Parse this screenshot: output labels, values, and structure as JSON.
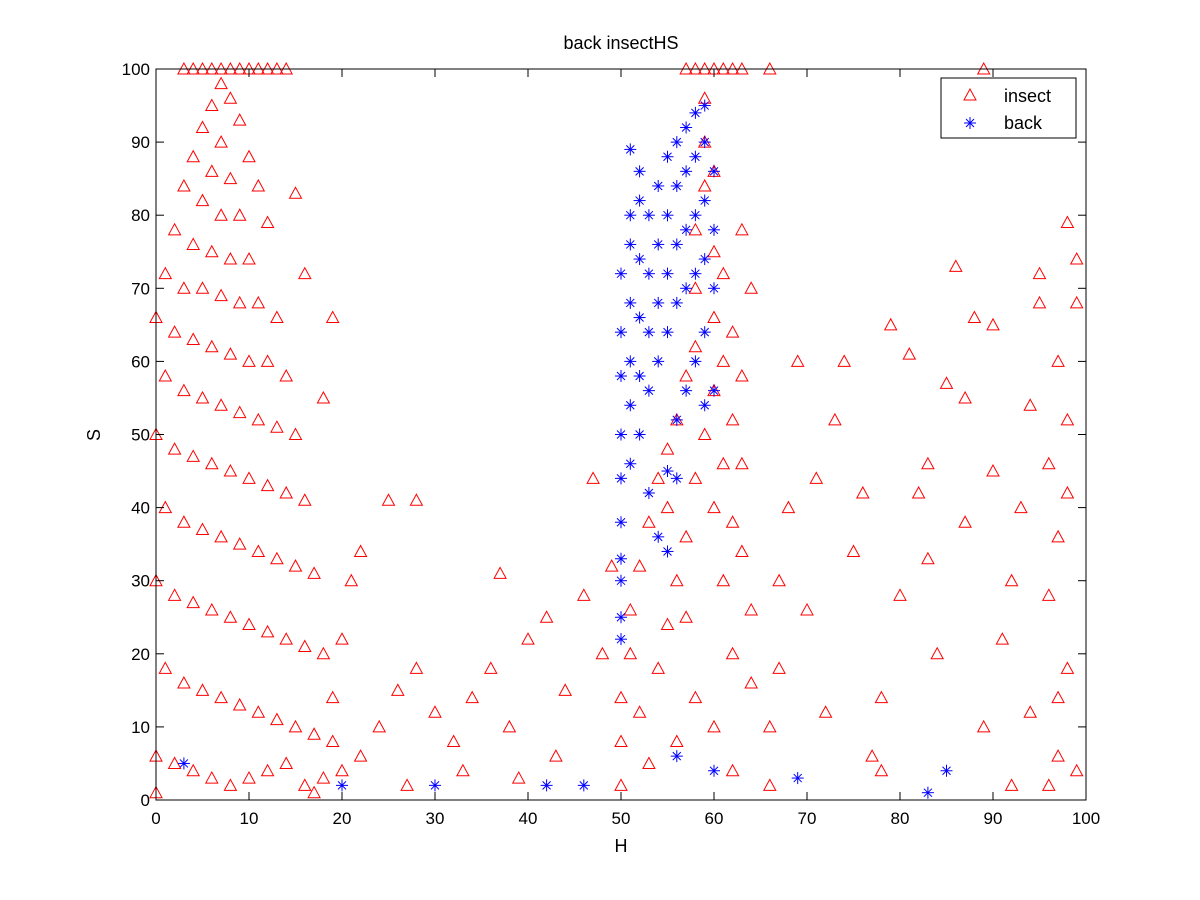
{
  "chart_data": {
    "type": "scatter",
    "title": "back insectHS",
    "xlabel": "H",
    "ylabel": "S",
    "xlim": [
      0,
      100
    ],
    "ylim": [
      0,
      100
    ],
    "xticks": [
      0,
      10,
      20,
      30,
      40,
      50,
      60,
      70,
      80,
      90,
      100
    ],
    "yticks": [
      0,
      10,
      20,
      30,
      40,
      50,
      60,
      70,
      80,
      90,
      100
    ],
    "grid": false,
    "legend_placement": "top-right",
    "series": [
      {
        "name": "insect",
        "marker": "triangle",
        "color": "#ff0000",
        "points": [
          [
            3,
            100
          ],
          [
            4,
            100
          ],
          [
            5,
            100
          ],
          [
            6,
            100
          ],
          [
            7,
            100
          ],
          [
            8,
            100
          ],
          [
            9,
            100
          ],
          [
            10,
            100
          ],
          [
            11,
            100
          ],
          [
            12,
            100
          ],
          [
            13,
            100
          ],
          [
            14,
            100
          ],
          [
            57,
            100
          ],
          [
            58,
            100
          ],
          [
            59,
            100
          ],
          [
            60,
            100
          ],
          [
            61,
            100
          ],
          [
            62,
            100
          ],
          [
            63,
            100
          ],
          [
            66,
            100
          ],
          [
            89,
            100
          ],
          [
            7,
            98
          ],
          [
            6,
            95
          ],
          [
            8,
            96
          ],
          [
            5,
            92
          ],
          [
            9,
            93
          ],
          [
            7,
            90
          ],
          [
            4,
            88
          ],
          [
            10,
            88
          ],
          [
            6,
            86
          ],
          [
            8,
            85
          ],
          [
            3,
            84
          ],
          [
            11,
            84
          ],
          [
            5,
            82
          ],
          [
            7,
            80
          ],
          [
            9,
            80
          ],
          [
            2,
            78
          ],
          [
            12,
            79
          ],
          [
            4,
            76
          ],
          [
            6,
            75
          ],
          [
            8,
            74
          ],
          [
            10,
            74
          ],
          [
            1,
            72
          ],
          [
            3,
            70
          ],
          [
            5,
            70
          ],
          [
            7,
            69
          ],
          [
            9,
            68
          ],
          [
            11,
            68
          ],
          [
            13,
            66
          ],
          [
            0,
            66
          ],
          [
            2,
            64
          ],
          [
            4,
            63
          ],
          [
            6,
            62
          ],
          [
            8,
            61
          ],
          [
            10,
            60
          ],
          [
            12,
            60
          ],
          [
            14,
            58
          ],
          [
            1,
            58
          ],
          [
            3,
            56
          ],
          [
            5,
            55
          ],
          [
            7,
            54
          ],
          [
            9,
            53
          ],
          [
            11,
            52
          ],
          [
            13,
            51
          ],
          [
            15,
            50
          ],
          [
            0,
            50
          ],
          [
            2,
            48
          ],
          [
            4,
            47
          ],
          [
            6,
            46
          ],
          [
            8,
            45
          ],
          [
            10,
            44
          ],
          [
            12,
            43
          ],
          [
            14,
            42
          ],
          [
            16,
            41
          ],
          [
            1,
            40
          ],
          [
            3,
            38
          ],
          [
            5,
            37
          ],
          [
            7,
            36
          ],
          [
            9,
            35
          ],
          [
            11,
            34
          ],
          [
            13,
            33
          ],
          [
            15,
            32
          ],
          [
            17,
            31
          ],
          [
            0,
            30
          ],
          [
            2,
            28
          ],
          [
            4,
            27
          ],
          [
            6,
            26
          ],
          [
            8,
            25
          ],
          [
            10,
            24
          ],
          [
            12,
            23
          ],
          [
            14,
            22
          ],
          [
            16,
            21
          ],
          [
            18,
            20
          ],
          [
            1,
            18
          ],
          [
            3,
            16
          ],
          [
            5,
            15
          ],
          [
            7,
            14
          ],
          [
            9,
            13
          ],
          [
            11,
            12
          ],
          [
            13,
            11
          ],
          [
            15,
            10
          ],
          [
            17,
            9
          ],
          [
            19,
            8
          ],
          [
            0,
            6
          ],
          [
            2,
            5
          ],
          [
            4,
            4
          ],
          [
            6,
            3
          ],
          [
            8,
            2
          ],
          [
            10,
            3
          ],
          [
            12,
            4
          ],
          [
            14,
            5
          ],
          [
            16,
            2
          ],
          [
            18,
            3
          ],
          [
            20,
            4
          ],
          [
            0,
            1
          ],
          [
            17,
            1
          ],
          [
            19,
            14
          ],
          [
            20,
            22
          ],
          [
            21,
            30
          ],
          [
            22,
            34
          ],
          [
            18,
            55
          ],
          [
            19,
            66
          ],
          [
            16,
            72
          ],
          [
            15,
            83
          ],
          [
            25,
            41
          ],
          [
            28,
            41
          ],
          [
            24,
            10
          ],
          [
            26,
            15
          ],
          [
            28,
            18
          ],
          [
            30,
            12
          ],
          [
            32,
            8
          ],
          [
            34,
            14
          ],
          [
            36,
            18
          ],
          [
            38,
            10
          ],
          [
            40,
            22
          ],
          [
            42,
            25
          ],
          [
            44,
            15
          ],
          [
            46,
            28
          ],
          [
            48,
            20
          ],
          [
            37,
            31
          ],
          [
            22,
            6
          ],
          [
            27,
            2
          ],
          [
            33,
            4
          ],
          [
            39,
            3
          ],
          [
            43,
            6
          ],
          [
            50,
            2
          ],
          [
            50,
            8
          ],
          [
            50,
            14
          ],
          [
            51,
            20
          ],
          [
            51,
            26
          ],
          [
            52,
            32
          ],
          [
            53,
            38
          ],
          [
            54,
            44
          ],
          [
            55,
            40
          ],
          [
            55,
            48
          ],
          [
            56,
            30
          ],
          [
            56,
            52
          ],
          [
            57,
            25
          ],
          [
            57,
            36
          ],
          [
            57,
            58
          ],
          [
            58,
            44
          ],
          [
            58,
            62
          ],
          [
            58,
            70
          ],
          [
            58,
            78
          ],
          [
            59,
            50
          ],
          [
            59,
            84
          ],
          [
            59,
            90
          ],
          [
            59,
            96
          ],
          [
            60,
            40
          ],
          [
            60,
            56
          ],
          [
            60,
            66
          ],
          [
            60,
            75
          ],
          [
            60,
            86
          ],
          [
            61,
            30
          ],
          [
            61,
            46
          ],
          [
            61,
            60
          ],
          [
            61,
            72
          ],
          [
            62,
            20
          ],
          [
            62,
            38
          ],
          [
            62,
            52
          ],
          [
            62,
            64
          ],
          [
            63,
            34
          ],
          [
            63,
            46
          ],
          [
            63,
            58
          ],
          [
            63,
            78
          ],
          [
            64,
            70
          ],
          [
            64,
            26
          ],
          [
            52,
            12
          ],
          [
            54,
            18
          ],
          [
            56,
            8
          ],
          [
            58,
            14
          ],
          [
            60,
            10
          ],
          [
            62,
            4
          ],
          [
            64,
            16
          ],
          [
            53,
            5
          ],
          [
            55,
            24
          ],
          [
            49,
            32
          ],
          [
            47,
            44
          ],
          [
            66,
            2
          ],
          [
            66,
            10
          ],
          [
            67,
            18
          ],
          [
            67,
            30
          ],
          [
            68,
            40
          ],
          [
            69,
            60
          ],
          [
            70,
            26
          ],
          [
            71,
            44
          ],
          [
            72,
            12
          ],
          [
            73,
            52
          ],
          [
            74,
            60
          ],
          [
            75,
            34
          ],
          [
            76,
            42
          ],
          [
            77,
            6
          ],
          [
            78,
            4
          ],
          [
            78,
            14
          ],
          [
            79,
            65
          ],
          [
            80,
            28
          ],
          [
            81,
            61
          ],
          [
            82,
            42
          ],
          [
            83,
            46
          ],
          [
            83,
            33
          ],
          [
            84,
            20
          ],
          [
            85,
            57
          ],
          [
            86,
            73
          ],
          [
            87,
            55
          ],
          [
            87,
            38
          ],
          [
            88,
            66
          ],
          [
            89,
            10
          ],
          [
            90,
            65
          ],
          [
            90,
            45
          ],
          [
            91,
            22
          ],
          [
            92,
            2
          ],
          [
            92,
            30
          ],
          [
            93,
            40
          ],
          [
            94,
            54
          ],
          [
            94,
            12
          ],
          [
            95,
            68
          ],
          [
            95,
            72
          ],
          [
            96,
            46
          ],
          [
            96,
            28
          ],
          [
            97,
            60
          ],
          [
            97,
            36
          ],
          [
            97,
            6
          ],
          [
            98,
            79
          ],
          [
            98,
            52
          ],
          [
            98,
            42
          ],
          [
            98,
            18
          ],
          [
            99,
            74
          ],
          [
            99,
            68
          ],
          [
            99,
            4
          ],
          [
            97,
            14
          ],
          [
            96,
            2
          ]
        ]
      },
      {
        "name": "back",
        "marker": "asterisk",
        "color": "#0000ff",
        "points": [
          [
            50,
            72
          ],
          [
            50,
            64
          ],
          [
            50,
            58
          ],
          [
            50,
            50
          ],
          [
            50,
            44
          ],
          [
            50,
            38
          ],
          [
            50,
            33
          ],
          [
            50,
            30
          ],
          [
            50,
            25
          ],
          [
            50,
            22
          ],
          [
            51,
            80
          ],
          [
            51,
            76
          ],
          [
            51,
            68
          ],
          [
            51,
            60
          ],
          [
            51,
            54
          ],
          [
            51,
            46
          ],
          [
            52,
            86
          ],
          [
            52,
            82
          ],
          [
            52,
            74
          ],
          [
            52,
            66
          ],
          [
            52,
            58
          ],
          [
            52,
            50
          ],
          [
            53,
            80
          ],
          [
            53,
            72
          ],
          [
            53,
            64
          ],
          [
            53,
            56
          ],
          [
            54,
            84
          ],
          [
            54,
            76
          ],
          [
            54,
            68
          ],
          [
            54,
            60
          ],
          [
            55,
            88
          ],
          [
            55,
            80
          ],
          [
            55,
            72
          ],
          [
            55,
            64
          ],
          [
            55,
            45
          ],
          [
            55,
            34
          ],
          [
            56,
            90
          ],
          [
            56,
            84
          ],
          [
            56,
            76
          ],
          [
            56,
            68
          ],
          [
            56,
            52
          ],
          [
            57,
            92
          ],
          [
            57,
            86
          ],
          [
            57,
            78
          ],
          [
            57,
            70
          ],
          [
            57,
            56
          ],
          [
            58,
            94
          ],
          [
            58,
            88
          ],
          [
            58,
            80
          ],
          [
            58,
            72
          ],
          [
            58,
            60
          ],
          [
            59,
            95
          ],
          [
            59,
            90
          ],
          [
            59,
            82
          ],
          [
            59,
            74
          ],
          [
            59,
            64
          ],
          [
            60,
            86
          ],
          [
            60,
            78
          ],
          [
            60,
            70
          ],
          [
            60,
            56
          ],
          [
            59,
            54
          ],
          [
            56,
            44
          ],
          [
            54,
            36
          ],
          [
            51,
            89
          ],
          [
            53,
            42
          ],
          [
            3,
            5
          ],
          [
            20,
            2
          ],
          [
            30,
            2
          ],
          [
            42,
            2
          ],
          [
            46,
            2
          ],
          [
            56,
            6
          ],
          [
            60,
            4
          ],
          [
            69,
            3
          ],
          [
            83,
            1
          ],
          [
            85,
            4
          ]
        ]
      }
    ]
  }
}
